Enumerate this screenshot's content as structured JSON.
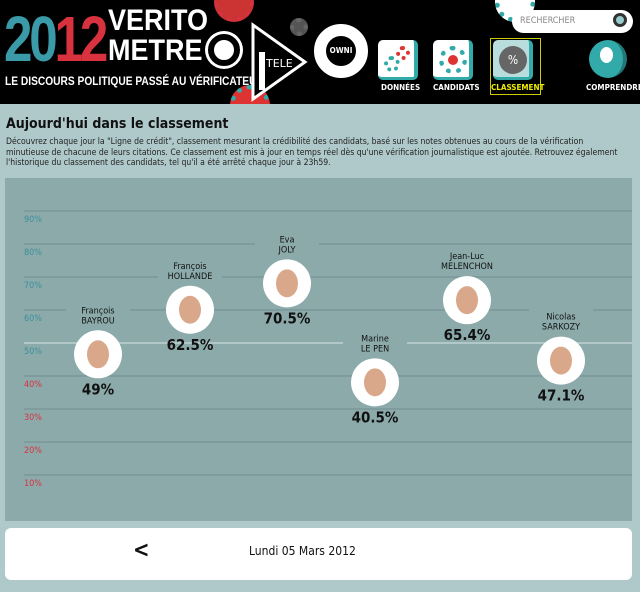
{
  "header": {
    "logo_year_a": "20",
    "logo_year_b": "12",
    "logo_word_1": "VERITO",
    "logo_word_2": "METRE",
    "tagline": "LE DISCOURS POLITIQUE PASSÉ AU VÉRIFICATEUR",
    "partner_1": "TELE",
    "partner_2": "OWNI",
    "search_placeholder": "RECHERCHER",
    "nav": [
      {
        "label": "DONNÉES"
      },
      {
        "label": "CANDIDATS"
      },
      {
        "label": "CLASSEMENT",
        "active": true
      },
      {
        "label": "COMPRENDRE"
      }
    ]
  },
  "main": {
    "title": "Aujourd'hui dans le classement",
    "intro": "Découvrez chaque jour la \"Ligne de crédit\", classement mesurant la crédibilité des candidats, basé sur les notes obtenues au cours de la vérification minutieuse de chacune de leurs citations. Ce classement est mis à jour en temps réel dès qu'une vérification journalistique est ajoutée. Retrouvez également l'historique du classement des candidats, tel qu'il a été arrêté chaque jour à 23h59."
  },
  "chart_data": {
    "type": "scatter",
    "yticks": [
      "90%",
      "80%",
      "70%",
      "60%",
      "50%",
      "40%",
      "30%",
      "20%",
      "10%"
    ],
    "ylim": [
      10,
      90
    ],
    "colors": {
      "above": "#3a8f9c",
      "below": "#d8323f",
      "line": "#6f8f90",
      "midline": "#d8e6e6"
    },
    "points": [
      {
        "first": "François",
        "last": "BAYROU",
        "value": 49,
        "label": "49%"
      },
      {
        "first": "François",
        "last": "HOLLANDE",
        "value": 62.5,
        "label": "62.5%"
      },
      {
        "first": "Eva",
        "last": "JOLY",
        "value": 70.5,
        "label": "70.5%"
      },
      {
        "first": "Marine",
        "last": "LE PEN",
        "value": 40.5,
        "label": "40.5%"
      },
      {
        "first": "Jean-Luc",
        "last": "MELENCHON",
        "value": 65.4,
        "label": "65.4%"
      },
      {
        "first": "Nicolas",
        "last": "SARKOZY",
        "value": 47.1,
        "label": "47.1%"
      }
    ]
  },
  "footer": {
    "prev_label": "<",
    "date": "Lundi 05 Mars 2012"
  }
}
